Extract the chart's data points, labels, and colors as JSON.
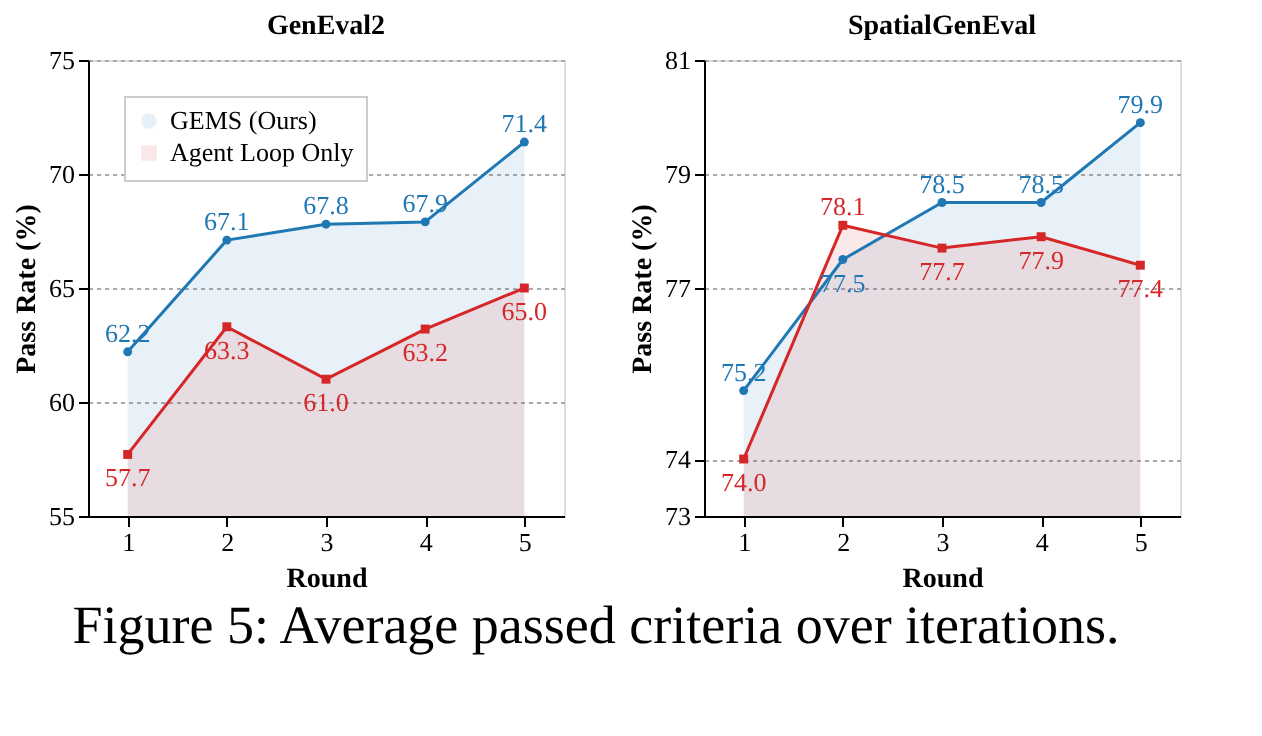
{
  "chart_data": [
    {
      "type": "area",
      "title": "GenEval2",
      "xlabel": "Round",
      "ylabel": "Pass Rate (%)",
      "categories": [
        "1",
        "2",
        "3",
        "4",
        "5"
      ],
      "series": [
        {
          "name": "GEMS (Ours)",
          "color": "#1f77b4",
          "marker": "circle",
          "values": [
            62.2,
            67.1,
            67.8,
            67.9,
            71.4
          ],
          "value_labels": [
            "62.2",
            "67.1",
            "67.8",
            "67.9",
            "71.4"
          ]
        },
        {
          "name": "Agent Loop Only",
          "color": "#d62728",
          "marker": "square",
          "values": [
            57.7,
            63.3,
            61.0,
            63.2,
            65.0
          ],
          "value_labels": [
            "57.7",
            "63.3",
            "61.0",
            "63.2",
            "65.0"
          ]
        }
      ],
      "ylim": [
        55,
        75
      ],
      "yticks": [
        55,
        60,
        65,
        70,
        75
      ],
      "grid": "y",
      "legend": "top left",
      "annotations": [
        "Figure 5: Average passed criteria over iterations."
      ]
    },
    {
      "type": "area",
      "title": "SpatialGenEval",
      "xlabel": "Round",
      "ylabel": "Pass Rate (%)",
      "categories": [
        "1",
        "2",
        "3",
        "4",
        "5"
      ],
      "series": [
        {
          "name": "GEMS (Ours)",
          "color": "#1f77b4",
          "marker": "circle",
          "values": [
            75.2,
            77.5,
            78.5,
            78.5,
            79.9
          ],
          "value_labels": [
            "75.2",
            "77.5",
            "78.5",
            "78.5",
            "79.9"
          ]
        },
        {
          "name": "Agent Loop Only",
          "color": "#d62728",
          "marker": "square",
          "values": [
            74.0,
            78.1,
            77.7,
            77.9,
            77.4
          ],
          "value_labels": [
            "74.0",
            "78.1",
            "77.7",
            "77.9",
            "77.4"
          ]
        }
      ],
      "ylim": [
        73,
        81
      ],
      "yticks": [
        73,
        74,
        77,
        79,
        81
      ],
      "grid": "y",
      "legend": "top left"
    }
  ]
}
